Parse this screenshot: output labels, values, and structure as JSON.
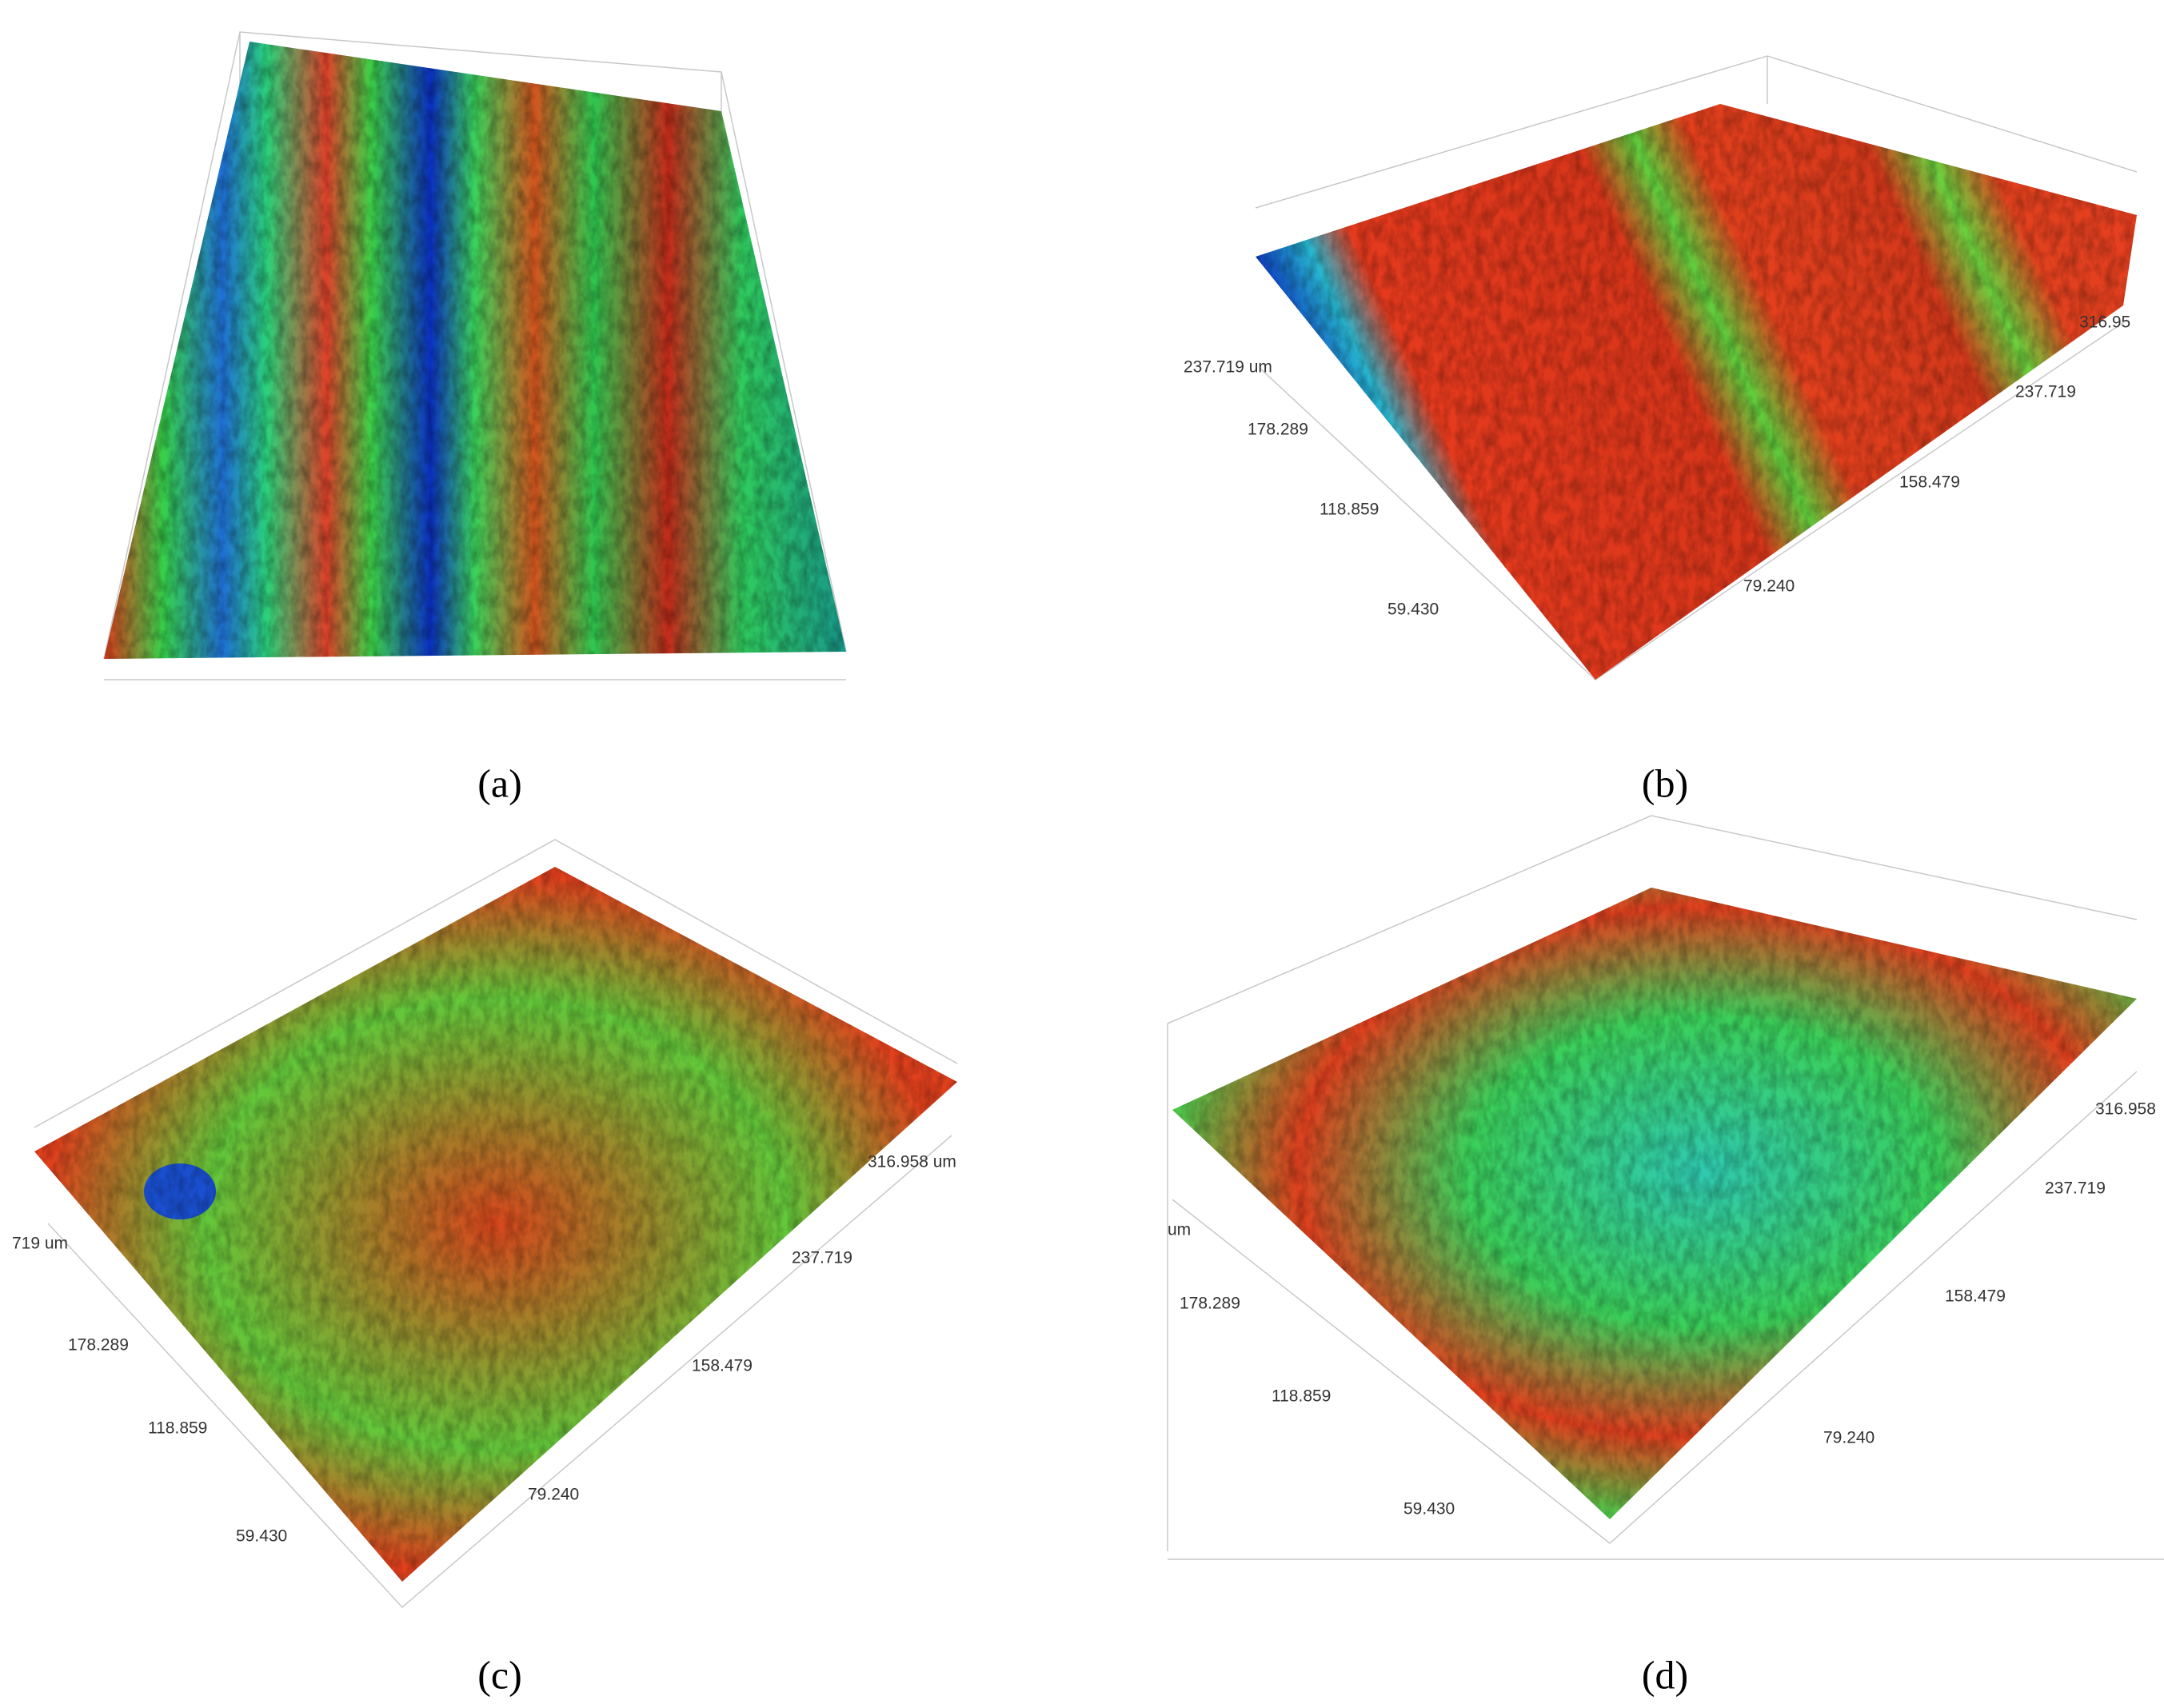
{
  "panels": [
    {
      "caption": "(a)",
      "labels": []
    },
    {
      "caption": "(b)",
      "labels": [
        "237.719 um",
        "178.289",
        "118.859",
        "59.430",
        "79.240",
        "158.479",
        "237.719",
        "316.95"
      ]
    },
    {
      "caption": "(c)",
      "labels": [
        "719 um",
        "178.289",
        "118.859",
        "59.430",
        "79.240",
        "158.479",
        "237.719",
        "316.958 um"
      ]
    },
    {
      "caption": "(d)",
      "labels": [
        "um",
        "178.289",
        "118.859",
        "59.430",
        "79.240",
        "158.479",
        "237.719",
        "316.958"
      ]
    }
  ]
}
